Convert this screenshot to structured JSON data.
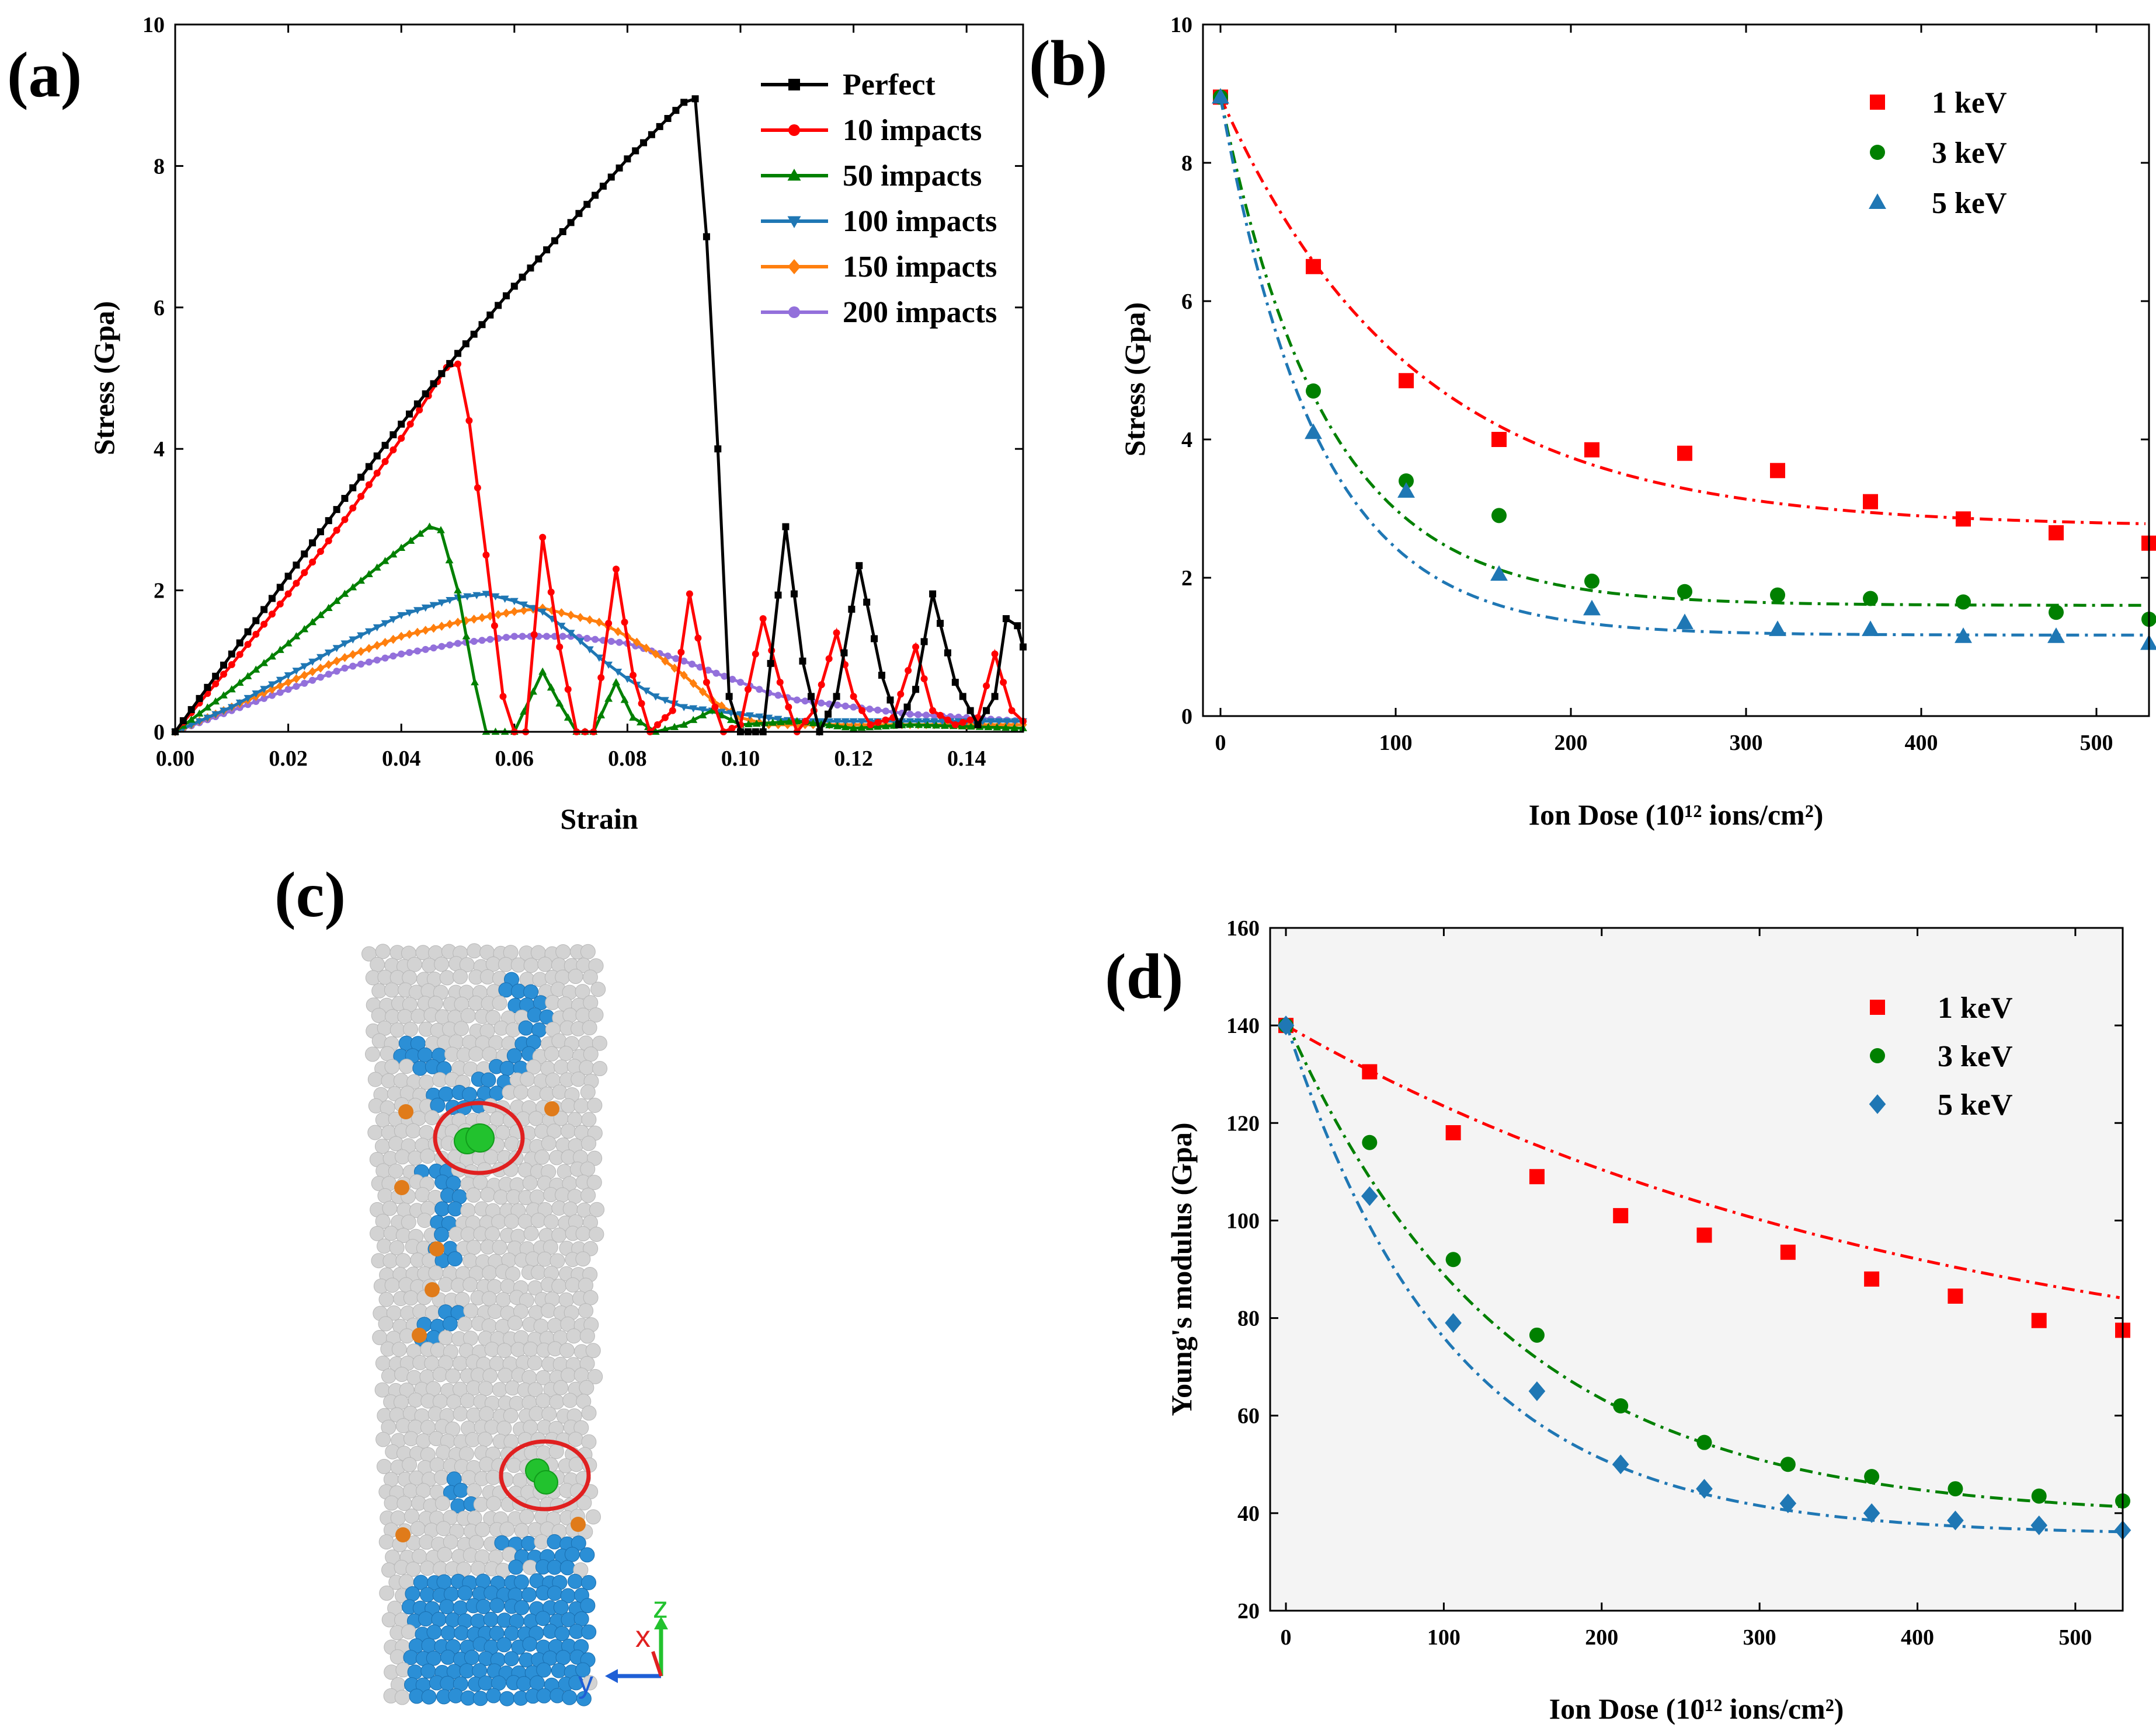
{
  "chart_data": [
    {
      "id": "a",
      "panel_label": "(a)",
      "type": "line",
      "xlabel": "Strain",
      "ylabel": "Stress (Gpa)",
      "xlim": [
        0,
        0.15
      ],
      "ylim": [
        0,
        10
      ],
      "xticks": [
        "0.00",
        "0.02",
        "0.04",
        "0.06",
        "0.08",
        "0.10",
        "0.12",
        "0.14"
      ],
      "yticks": [
        "0",
        "2",
        "4",
        "6",
        "8",
        "10"
      ],
      "legend_position": "top-right",
      "series": [
        {
          "name": "Perfect",
          "color": "#000000",
          "marker": "square",
          "points": [
            [
              0,
              0
            ],
            [
              0.01,
              1.1
            ],
            [
              0.02,
              2.2
            ],
            [
              0.03,
              3.3
            ],
            [
              0.04,
              4.35
            ],
            [
              0.05,
              5.35
            ],
            [
              0.06,
              6.3
            ],
            [
              0.07,
              7.2
            ],
            [
              0.08,
              8.1
            ],
            [
              0.09,
              8.9
            ],
            [
              0.092,
              8.95
            ],
            [
              0.094,
              7.0
            ],
            [
              0.096,
              4.0
            ],
            [
              0.098,
              0.5
            ],
            [
              0.1,
              0.0
            ],
            [
              0.104,
              0.0
            ],
            [
              0.108,
              2.9
            ],
            [
              0.111,
              1.0
            ],
            [
              0.114,
              0.0
            ],
            [
              0.117,
              0.5
            ],
            [
              0.121,
              2.35
            ],
            [
              0.125,
              0.8
            ],
            [
              0.128,
              0.1
            ],
            [
              0.131,
              0.6
            ],
            [
              0.134,
              1.95
            ],
            [
              0.138,
              0.7
            ],
            [
              0.142,
              0.1
            ],
            [
              0.145,
              0.5
            ],
            [
              0.147,
              1.6
            ],
            [
              0.149,
              1.5
            ],
            [
              0.15,
              1.2
            ]
          ]
        },
        {
          "name": "10 impacts",
          "color": "#ff0000",
          "marker": "circle",
          "points": [
            [
              0,
              0
            ],
            [
              0.01,
              0.95
            ],
            [
              0.02,
              1.95
            ],
            [
              0.03,
              3.0
            ],
            [
              0.04,
              4.15
            ],
            [
              0.048,
              5.15
            ],
            [
              0.05,
              5.2
            ],
            [
              0.052,
              4.4
            ],
            [
              0.055,
              2.5
            ],
            [
              0.058,
              0.5
            ],
            [
              0.06,
              0.0
            ],
            [
              0.062,
              0.0
            ],
            [
              0.065,
              2.75
            ],
            [
              0.068,
              1.2
            ],
            [
              0.071,
              0.0
            ],
            [
              0.074,
              0.0
            ],
            [
              0.078,
              2.3
            ],
            [
              0.081,
              0.8
            ],
            [
              0.084,
              0.0
            ],
            [
              0.088,
              0.3
            ],
            [
              0.091,
              1.95
            ],
            [
              0.094,
              0.7
            ],
            [
              0.097,
              0.0
            ],
            [
              0.1,
              0.1
            ],
            [
              0.104,
              1.6
            ],
            [
              0.107,
              0.7
            ],
            [
              0.11,
              0.0
            ],
            [
              0.113,
              0.3
            ],
            [
              0.117,
              1.4
            ],
            [
              0.12,
              0.5
            ],
            [
              0.123,
              0.1
            ],
            [
              0.127,
              0.2
            ],
            [
              0.131,
              1.2
            ],
            [
              0.134,
              0.3
            ],
            [
              0.138,
              0.1
            ],
            [
              0.142,
              0.2
            ],
            [
              0.145,
              1.1
            ],
            [
              0.148,
              0.3
            ],
            [
              0.15,
              0.15
            ]
          ]
        },
        {
          "name": "50 impacts",
          "color": "#008000",
          "marker": "triangle-up",
          "points": [
            [
              0,
              0
            ],
            [
              0.01,
              0.6
            ],
            [
              0.02,
              1.25
            ],
            [
              0.03,
              1.95
            ],
            [
              0.04,
              2.6
            ],
            [
              0.045,
              2.9
            ],
            [
              0.047,
              2.85
            ],
            [
              0.05,
              2.0
            ],
            [
              0.053,
              0.7
            ],
            [
              0.055,
              0.0
            ],
            [
              0.06,
              0.0
            ],
            [
              0.065,
              0.85
            ],
            [
              0.068,
              0.4
            ],
            [
              0.071,
              0.0
            ],
            [
              0.074,
              0.0
            ],
            [
              0.078,
              0.7
            ],
            [
              0.081,
              0.2
            ],
            [
              0.085,
              0.0
            ],
            [
              0.09,
              0.1
            ],
            [
              0.095,
              0.3
            ],
            [
              0.1,
              0.1
            ],
            [
              0.11,
              0.15
            ],
            [
              0.12,
              0.05
            ],
            [
              0.13,
              0.1
            ],
            [
              0.15,
              0.05
            ]
          ]
        },
        {
          "name": "100 impacts",
          "color": "#1f77b4",
          "marker": "triangle-down",
          "points": [
            [
              0,
              0
            ],
            [
              0.01,
              0.35
            ],
            [
              0.02,
              0.8
            ],
            [
              0.03,
              1.25
            ],
            [
              0.04,
              1.65
            ],
            [
              0.05,
              1.9
            ],
            [
              0.055,
              1.95
            ],
            [
              0.06,
              1.85
            ],
            [
              0.065,
              1.7
            ],
            [
              0.07,
              1.4
            ],
            [
              0.075,
              1.05
            ],
            [
              0.08,
              0.75
            ],
            [
              0.085,
              0.5
            ],
            [
              0.09,
              0.35
            ],
            [
              0.095,
              0.3
            ],
            [
              0.1,
              0.25
            ],
            [
              0.105,
              0.2
            ],
            [
              0.11,
              0.15
            ],
            [
              0.12,
              0.15
            ],
            [
              0.13,
              0.15
            ],
            [
              0.14,
              0.15
            ],
            [
              0.15,
              0.15
            ]
          ]
        },
        {
          "name": "150 impacts",
          "color": "#ff7f0e",
          "marker": "diamond",
          "points": [
            [
              0,
              0
            ],
            [
              0.01,
              0.35
            ],
            [
              0.02,
              0.7
            ],
            [
              0.03,
              1.05
            ],
            [
              0.04,
              1.35
            ],
            [
              0.05,
              1.55
            ],
            [
              0.06,
              1.7
            ],
            [
              0.065,
              1.75
            ],
            [
              0.07,
              1.65
            ],
            [
              0.075,
              1.55
            ],
            [
              0.08,
              1.35
            ],
            [
              0.085,
              1.1
            ],
            [
              0.09,
              0.8
            ],
            [
              0.095,
              0.45
            ],
            [
              0.1,
              0.2
            ],
            [
              0.105,
              0.1
            ],
            [
              0.11,
              0.1
            ],
            [
              0.12,
              0.1
            ],
            [
              0.13,
              0.1
            ],
            [
              0.14,
              0.1
            ],
            [
              0.15,
              0.1
            ]
          ]
        },
        {
          "name": "200 impacts",
          "color": "#9370db",
          "marker": "circle",
          "points": [
            [
              0,
              0
            ],
            [
              0.01,
              0.3
            ],
            [
              0.02,
              0.6
            ],
            [
              0.03,
              0.9
            ],
            [
              0.04,
              1.1
            ],
            [
              0.05,
              1.25
            ],
            [
              0.06,
              1.35
            ],
            [
              0.07,
              1.35
            ],
            [
              0.08,
              1.25
            ],
            [
              0.09,
              1.0
            ],
            [
              0.1,
              0.7
            ],
            [
              0.105,
              0.55
            ],
            [
              0.11,
              0.45
            ],
            [
              0.12,
              0.35
            ],
            [
              0.13,
              0.25
            ],
            [
              0.14,
              0.2
            ],
            [
              0.15,
              0.15
            ]
          ]
        }
      ]
    },
    {
      "id": "b",
      "panel_label": "(b)",
      "type": "scatter",
      "xlabel": "Ion Dose (10¹² ions/cm²)",
      "ylabel": "Stress (Gpa)",
      "xlim": [
        -10,
        530
      ],
      "ylim": [
        0,
        10
      ],
      "xticks": [
        "0",
        "100",
        "200",
        "300",
        "400",
        "500"
      ],
      "yticks": [
        "0",
        "2",
        "4",
        "6",
        "8",
        "10"
      ],
      "legend_position": "top-right",
      "x": [
        0,
        53,
        106,
        159,
        212,
        265,
        318,
        371,
        424,
        477,
        530
      ],
      "series": [
        {
          "name": "1 keV",
          "color": "#ff0000",
          "marker": "square",
          "values": [
            8.95,
            6.5,
            4.85,
            4.0,
            3.85,
            3.8,
            3.55,
            3.1,
            2.85,
            2.65,
            2.5
          ],
          "fit": {
            "y0": 2.73,
            "A": 6.22,
            "t": 110
          }
        },
        {
          "name": "3 keV",
          "color": "#008000",
          "marker": "circle",
          "values": [
            8.95,
            4.7,
            3.4,
            2.9,
            1.95,
            1.8,
            1.75,
            1.7,
            1.65,
            1.5,
            1.4
          ],
          "fit": {
            "y0": 1.6,
            "A": 7.35,
            "t": 60
          }
        },
        {
          "name": "5 keV",
          "color": "#1f77b4",
          "marker": "triangle-up",
          "values": [
            8.95,
            4.1,
            3.25,
            2.05,
            1.55,
            1.35,
            1.25,
            1.25,
            1.15,
            1.15,
            1.05
          ],
          "fit": {
            "y0": 1.17,
            "A": 7.78,
            "t": 55
          }
        }
      ]
    },
    {
      "id": "d",
      "panel_label": "(d)",
      "type": "scatter",
      "xlabel": "Ion Dose (10¹² ions/cm²)",
      "ylabel": "Young's modulus (Gpa)",
      "xlim": [
        -10,
        530
      ],
      "ylim": [
        20,
        160
      ],
      "xticks": [
        "0",
        "100",
        "200",
        "300",
        "400",
        "500"
      ],
      "yticks": [
        "20",
        "40",
        "60",
        "80",
        "100",
        "120",
        "140",
        "160"
      ],
      "legend_position": "top-right",
      "x": [
        0,
        53,
        106,
        159,
        212,
        265,
        318,
        371,
        424,
        477,
        530
      ],
      "series": [
        {
          "name": "1 keV",
          "color": "#ff0000",
          "marker": "square",
          "values": [
            140,
            130.5,
            118,
            109,
            101,
            97,
            93.5,
            88,
            84.5,
            79.5,
            77.5
          ],
          "fit": {
            "y0": 62,
            "A": 78,
            "t": 420
          }
        },
        {
          "name": "3 keV",
          "color": "#008000",
          "marker": "circle",
          "values": [
            140,
            116,
            92,
            76.5,
            62,
            54.5,
            50,
            47.5,
            45,
            43.5,
            42.5
          ],
          "fit": {
            "y0": 39,
            "A": 102,
            "t": 140
          }
        },
        {
          "name": "5 keV",
          "color": "#1f77b4",
          "marker": "diamond",
          "values": [
            140,
            105,
            79,
            65,
            50,
            45,
            42,
            40,
            38.5,
            37.5,
            36.5
          ],
          "fit": {
            "y0": 35.5,
            "A": 105,
            "t": 105
          }
        }
      ]
    }
  ],
  "panel_c": {
    "panel_label": "(c)",
    "axis_labels": {
      "z": "z",
      "x": "x",
      "y": "y"
    },
    "colors": {
      "matrix": "#d3d3d3",
      "defect": "#2b8fd6",
      "interstitial": "#e07b1a",
      "ion": "#22c22e",
      "highlight": "#e02020"
    }
  }
}
